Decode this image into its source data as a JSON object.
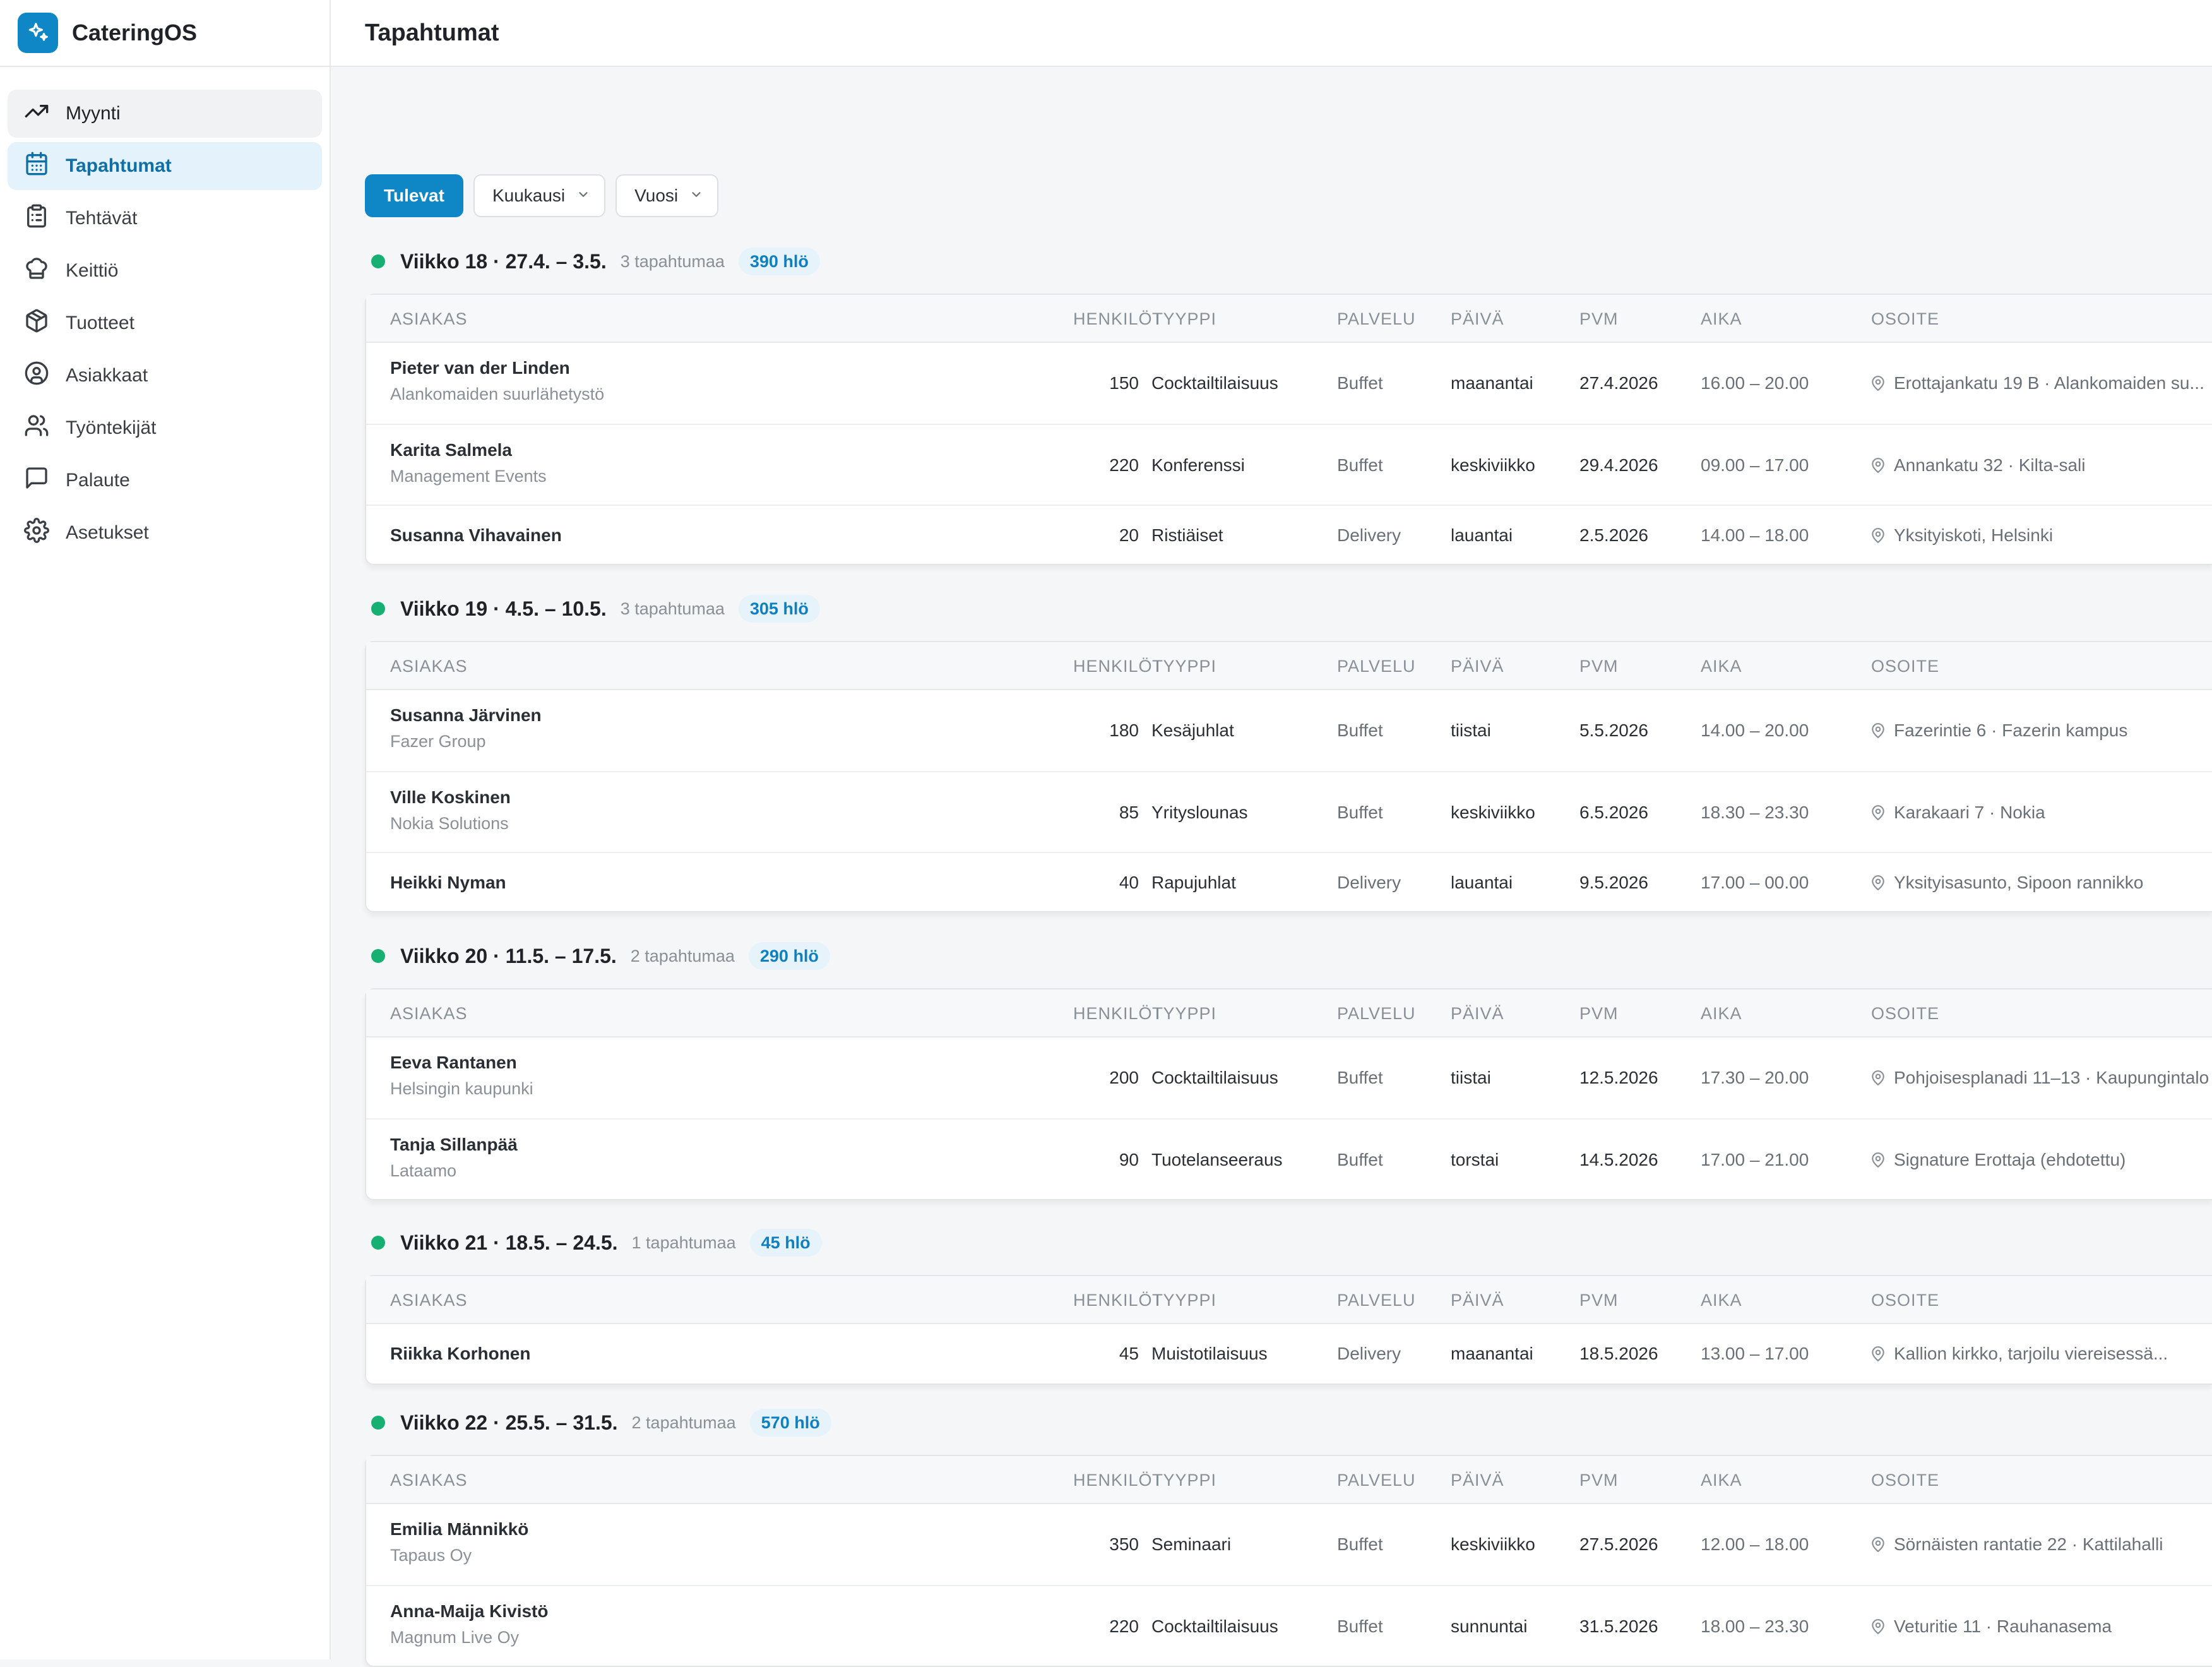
{
  "app": {
    "name": "CateringOS",
    "brand_color": "#0f86c6",
    "accent_green": "#16b073"
  },
  "sidebar": {
    "items": [
      {
        "label": "Myynti",
        "icon": "trending-up-icon"
      },
      {
        "label": "Tapahtumat",
        "icon": "calendar-icon"
      },
      {
        "label": "Tehtävät",
        "icon": "clipboard-icon"
      },
      {
        "label": "Keittiö",
        "icon": "chef-hat-icon"
      },
      {
        "label": "Tuotteet",
        "icon": "package-icon"
      },
      {
        "label": "Asiakkaat",
        "icon": "user-circle-icon"
      },
      {
        "label": "Työntekijät",
        "icon": "users-icon"
      },
      {
        "label": "Palaute",
        "icon": "message-square-icon"
      },
      {
        "label": "Asetukset",
        "icon": "settings-icon"
      }
    ],
    "active": "Tapahtumat"
  },
  "header": {
    "title": "Tapahtumat"
  },
  "filters": {
    "upcoming_label": "Tulevat",
    "month_label": "Kuukausi",
    "year_label": "Vuosi"
  },
  "columns": {
    "customer": "ASIAKAS",
    "persons": "HENKILÖT",
    "type": "TYYPPI",
    "service": "PALVELU",
    "day": "PÄIVÄ",
    "date": "PVM",
    "time": "AIKA",
    "address": "OSOITE"
  },
  "weeks": [
    {
      "title": "Viikko 18 · 27.4. – 3.5.",
      "count": "3 tapahtumaa",
      "badge": "390 hlö",
      "events": [
        {
          "name": "Pieter van der Linden",
          "org": "Alankomaiden suurlähetystö",
          "persons": "150",
          "type": "Cocktailtilaisuus",
          "service": "Buffet",
          "day": "maanantai",
          "date": "27.4.2026",
          "time": "16.00 – 20.00",
          "address": "Erottajankatu 19 B · Alankomaiden su..."
        },
        {
          "name": "Karita Salmela",
          "org": "Management Events",
          "persons": "220",
          "type": "Konferenssi",
          "service": "Buffet",
          "day": "keskiviikko",
          "date": "29.4.2026",
          "time": "09.00 – 17.00",
          "address": "Annankatu 32 · Kilta-sali"
        },
        {
          "name": "Susanna Vihavainen",
          "org": "",
          "persons": "20",
          "type": "Ristiäiset",
          "service": "Delivery",
          "day": "lauantai",
          "date": "2.5.2026",
          "time": "14.00 – 18.00",
          "address": "Yksityiskoti, Helsinki"
        }
      ]
    },
    {
      "title": "Viikko 19 · 4.5. – 10.5.",
      "count": "3 tapahtumaa",
      "badge": "305 hlö",
      "events": [
        {
          "name": "Susanna Järvinen",
          "org": "Fazer Group",
          "persons": "180",
          "type": "Kesäjuhlat",
          "service": "Buffet",
          "day": "tiistai",
          "date": "5.5.2026",
          "time": "14.00 – 20.00",
          "address": "Fazerintie 6 · Fazerin kampus"
        },
        {
          "name": "Ville Koskinen",
          "org": "Nokia Solutions",
          "persons": "85",
          "type": "Yrityslounas",
          "service": "Buffet",
          "day": "keskiviikko",
          "date": "6.5.2026",
          "time": "18.30 – 23.30",
          "address": "Karakaari 7 · Nokia"
        },
        {
          "name": "Heikki Nyman",
          "org": "",
          "persons": "40",
          "type": "Rapujuhlat",
          "service": "Delivery",
          "day": "lauantai",
          "date": "9.5.2026",
          "time": "17.00 – 00.00",
          "address": "Yksityisasunto, Sipoon rannikko"
        }
      ]
    },
    {
      "title": "Viikko 20 · 11.5. – 17.5.",
      "count": "2 tapahtumaa",
      "badge": "290 hlö",
      "events": [
        {
          "name": "Eeva Rantanen",
          "org": "Helsingin kaupunki",
          "persons": "200",
          "type": "Cocktailtilaisuus",
          "service": "Buffet",
          "day": "tiistai",
          "date": "12.5.2026",
          "time": "17.30 – 20.00",
          "address": "Pohjoisesplanadi 11–13 · Kaupungintalo"
        },
        {
          "name": "Tanja Sillanpää",
          "org": "Lataamo",
          "persons": "90",
          "type": "Tuotelanseeraus",
          "service": "Buffet",
          "day": "torstai",
          "date": "14.5.2026",
          "time": "17.00 – 21.00",
          "address": "Signature Erottaja (ehdotettu)"
        }
      ]
    },
    {
      "title": "Viikko 21 · 18.5. – 24.5.",
      "count": "1 tapahtumaa",
      "badge": "45 hlö",
      "events": [
        {
          "name": "Riikka Korhonen",
          "org": "",
          "persons": "45",
          "type": "Muistotilaisuus",
          "service": "Delivery",
          "day": "maanantai",
          "date": "18.5.2026",
          "time": "13.00 – 17.00",
          "address": "Kallion kirkko, tarjoilu viereisessä..."
        }
      ]
    },
    {
      "title": "Viikko 22 · 25.5. – 31.5.",
      "count": "2 tapahtumaa",
      "badge": "570 hlö",
      "events": [
        {
          "name": "Emilia Männikkö",
          "org": "Tapaus Oy",
          "persons": "350",
          "type": "Seminaari",
          "service": "Buffet",
          "day": "keskiviikko",
          "date": "27.5.2026",
          "time": "12.00 – 18.00",
          "address": "Sörnäisten rantatie 22 · Kattilahalli"
        },
        {
          "name": "Anna-Maija Kivistö",
          "org": "Magnum Live Oy",
          "persons": "220",
          "type": "Cocktailtilaisuus",
          "service": "Buffet",
          "day": "sunnuntai",
          "date": "31.5.2026",
          "time": "18.00 – 23.30",
          "address": "Veturitie 11 · Rauhanasema"
        }
      ]
    }
  ]
}
